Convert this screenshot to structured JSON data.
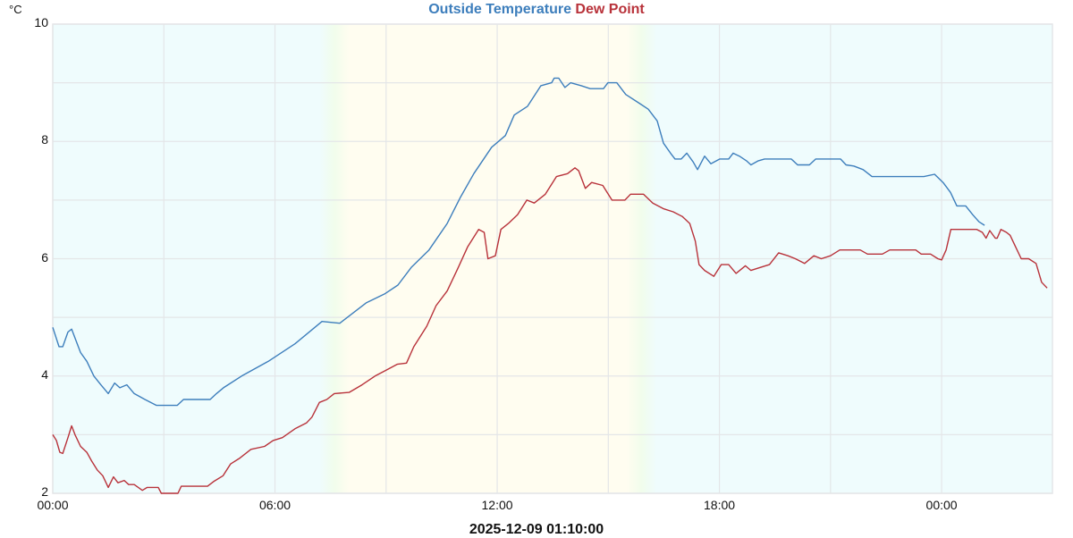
{
  "header": {
    "series_1_label": "Outside Temperature",
    "series_2_label": "Dew Point",
    "unit": "°C"
  },
  "footer": {
    "timestamp": "2025-12-09 01:10:00"
  },
  "colors": {
    "temperature": "#3d7ebc",
    "dew_point": "#b8323a",
    "grid": "#e4e6e8",
    "night_bg": "#effcfd",
    "day_bg": "#fffdf0",
    "twilight_bg": "#f1fdec"
  },
  "chart_data": {
    "type": "line",
    "title": "Outside Temperature Dew Point",
    "xlabel": "2025-12-09 01:10:00",
    "ylabel": "°C",
    "ylim": [
      2,
      10
    ],
    "xlim_hours": [
      0,
      27
    ],
    "y_ticks": [
      "2",
      "4",
      "6",
      "8",
      "10"
    ],
    "y_tick_values": [
      2,
      4,
      6,
      8,
      10
    ],
    "x_ticks": [
      "00:00",
      "06:00",
      "12:00",
      "18:00",
      "00:00"
    ],
    "x_tick_hours": [
      0,
      6,
      12,
      18,
      24
    ],
    "grid": {
      "x_every_hours": 3,
      "y_every": 1
    },
    "legend_position": "top-center",
    "daylight_band_hours": {
      "day_start": 8.0,
      "day_end": 15.5,
      "fade": 0.8
    },
    "series": [
      {
        "name": "Outside Temperature",
        "color": "#3d7ebc",
        "points": [
          [
            0.0,
            4.83
          ],
          [
            0.17,
            4.5
          ],
          [
            0.27,
            4.5
          ],
          [
            0.41,
            4.75
          ],
          [
            0.51,
            4.8
          ],
          [
            0.75,
            4.4
          ],
          [
            0.92,
            4.25
          ],
          [
            1.11,
            4.0
          ],
          [
            1.3,
            3.85
          ],
          [
            1.5,
            3.7
          ],
          [
            1.67,
            3.88
          ],
          [
            1.81,
            3.8
          ],
          [
            2.0,
            3.85
          ],
          [
            2.2,
            3.7
          ],
          [
            2.49,
            3.6
          ],
          [
            2.8,
            3.5
          ],
          [
            3.36,
            3.5
          ],
          [
            3.53,
            3.6
          ],
          [
            4.25,
            3.6
          ],
          [
            4.42,
            3.7
          ],
          [
            4.61,
            3.8
          ],
          [
            5.1,
            4.0
          ],
          [
            5.82,
            4.25
          ],
          [
            6.54,
            4.55
          ],
          [
            7.27,
            4.93
          ],
          [
            7.75,
            4.9
          ],
          [
            8.47,
            5.25
          ],
          [
            8.96,
            5.4
          ],
          [
            9.32,
            5.55
          ],
          [
            9.68,
            5.85
          ],
          [
            10.16,
            6.15
          ],
          [
            10.65,
            6.6
          ],
          [
            11.01,
            7.05
          ],
          [
            11.37,
            7.45
          ],
          [
            11.85,
            7.9
          ],
          [
            12.22,
            8.1
          ],
          [
            12.46,
            8.45
          ],
          [
            12.82,
            8.6
          ],
          [
            13.18,
            8.95
          ],
          [
            13.47,
            9.0
          ],
          [
            13.54,
            9.08
          ],
          [
            13.66,
            9.08
          ],
          [
            13.83,
            8.92
          ],
          [
            13.98,
            9.0
          ],
          [
            14.27,
            8.95
          ],
          [
            14.51,
            8.9
          ],
          [
            14.87,
            8.9
          ],
          [
            14.99,
            9.0
          ],
          [
            15.23,
            9.0
          ],
          [
            15.47,
            8.8
          ],
          [
            15.84,
            8.65
          ],
          [
            16.08,
            8.55
          ],
          [
            16.32,
            8.35
          ],
          [
            16.49,
            7.97
          ],
          [
            16.68,
            7.8
          ],
          [
            16.8,
            7.7
          ],
          [
            16.97,
            7.7
          ],
          [
            17.12,
            7.8
          ],
          [
            17.29,
            7.65
          ],
          [
            17.41,
            7.52
          ],
          [
            17.6,
            7.75
          ],
          [
            17.77,
            7.62
          ],
          [
            18.01,
            7.7
          ],
          [
            18.25,
            7.7
          ],
          [
            18.37,
            7.8
          ],
          [
            18.54,
            7.75
          ],
          [
            18.73,
            7.67
          ],
          [
            18.85,
            7.6
          ],
          [
            19.05,
            7.67
          ],
          [
            19.22,
            7.7
          ],
          [
            19.94,
            7.7
          ],
          [
            20.11,
            7.6
          ],
          [
            20.43,
            7.6
          ],
          [
            20.6,
            7.7
          ],
          [
            21.27,
            7.7
          ],
          [
            21.42,
            7.6
          ],
          [
            21.63,
            7.58
          ],
          [
            21.88,
            7.52
          ],
          [
            22.12,
            7.4
          ],
          [
            23.52,
            7.4
          ],
          [
            23.81,
            7.44
          ],
          [
            24.04,
            7.3
          ],
          [
            24.24,
            7.13
          ],
          [
            24.41,
            6.9
          ],
          [
            24.65,
            6.9
          ],
          [
            24.84,
            6.75
          ],
          [
            25.01,
            6.63
          ],
          [
            25.16,
            6.57
          ]
        ]
      },
      {
        "name": "Dew Point",
        "color": "#b8323a",
        "points": [
          [
            0.0,
            3.0
          ],
          [
            0.1,
            2.9
          ],
          [
            0.19,
            2.7
          ],
          [
            0.27,
            2.68
          ],
          [
            0.41,
            2.95
          ],
          [
            0.51,
            3.15
          ],
          [
            0.6,
            3.0
          ],
          [
            0.75,
            2.8
          ],
          [
            0.92,
            2.7
          ],
          [
            1.05,
            2.55
          ],
          [
            1.2,
            2.4
          ],
          [
            1.35,
            2.3
          ],
          [
            1.5,
            2.1
          ],
          [
            1.64,
            2.28
          ],
          [
            1.76,
            2.18
          ],
          [
            1.93,
            2.22
          ],
          [
            2.05,
            2.15
          ],
          [
            2.2,
            2.15
          ],
          [
            2.42,
            2.05
          ],
          [
            2.55,
            2.1
          ],
          [
            2.85,
            2.1
          ],
          [
            2.93,
            2.0
          ],
          [
            3.38,
            2.0
          ],
          [
            3.47,
            2.12
          ],
          [
            4.18,
            2.12
          ],
          [
            4.34,
            2.2
          ],
          [
            4.6,
            2.3
          ],
          [
            4.8,
            2.5
          ],
          [
            5.05,
            2.6
          ],
          [
            5.35,
            2.75
          ],
          [
            5.72,
            2.8
          ],
          [
            5.95,
            2.9
          ],
          [
            6.2,
            2.95
          ],
          [
            6.54,
            3.1
          ],
          [
            6.85,
            3.2
          ],
          [
            7.0,
            3.3
          ],
          [
            7.2,
            3.55
          ],
          [
            7.4,
            3.6
          ],
          [
            7.6,
            3.7
          ],
          [
            8.0,
            3.72
          ],
          [
            8.35,
            3.85
          ],
          [
            8.7,
            4.0
          ],
          [
            9.0,
            4.1
          ],
          [
            9.3,
            4.2
          ],
          [
            9.55,
            4.22
          ],
          [
            9.75,
            4.5
          ],
          [
            10.1,
            4.85
          ],
          [
            10.35,
            5.2
          ],
          [
            10.65,
            5.45
          ],
          [
            10.95,
            5.85
          ],
          [
            11.2,
            6.2
          ],
          [
            11.5,
            6.5
          ],
          [
            11.65,
            6.45
          ],
          [
            11.75,
            6.0
          ],
          [
            11.95,
            6.05
          ],
          [
            12.1,
            6.5
          ],
          [
            12.3,
            6.6
          ],
          [
            12.55,
            6.75
          ],
          [
            12.8,
            7.0
          ],
          [
            13.0,
            6.95
          ],
          [
            13.3,
            7.1
          ],
          [
            13.6,
            7.4
          ],
          [
            13.9,
            7.45
          ],
          [
            14.1,
            7.55
          ],
          [
            14.2,
            7.5
          ],
          [
            14.38,
            7.2
          ],
          [
            14.55,
            7.3
          ],
          [
            14.85,
            7.25
          ],
          [
            15.1,
            7.0
          ],
          [
            15.45,
            7.0
          ],
          [
            15.6,
            7.1
          ],
          [
            15.95,
            7.1
          ],
          [
            16.2,
            6.95
          ],
          [
            16.5,
            6.85
          ],
          [
            16.75,
            6.8
          ],
          [
            17.0,
            6.72
          ],
          [
            17.2,
            6.6
          ],
          [
            17.35,
            6.3
          ],
          [
            17.45,
            5.9
          ],
          [
            17.6,
            5.8
          ],
          [
            17.85,
            5.7
          ],
          [
            18.05,
            5.9
          ],
          [
            18.25,
            5.9
          ],
          [
            18.45,
            5.75
          ],
          [
            18.7,
            5.88
          ],
          [
            18.85,
            5.8
          ],
          [
            19.1,
            5.85
          ],
          [
            19.35,
            5.9
          ],
          [
            19.6,
            6.1
          ],
          [
            19.85,
            6.05
          ],
          [
            20.05,
            6.0
          ],
          [
            20.3,
            5.92
          ],
          [
            20.55,
            6.05
          ],
          [
            20.75,
            6.0
          ],
          [
            21.0,
            6.05
          ],
          [
            21.25,
            6.15
          ],
          [
            21.8,
            6.15
          ],
          [
            22.0,
            6.08
          ],
          [
            22.4,
            6.08
          ],
          [
            22.6,
            6.15
          ],
          [
            23.3,
            6.15
          ],
          [
            23.45,
            6.08
          ],
          [
            23.7,
            6.08
          ],
          [
            23.9,
            6.0
          ],
          [
            24.0,
            5.98
          ],
          [
            24.12,
            6.15
          ],
          [
            24.25,
            6.5
          ],
          [
            24.6,
            6.5
          ],
          [
            24.95,
            6.5
          ],
          [
            25.1,
            6.45
          ],
          [
            25.2,
            6.35
          ],
          [
            25.3,
            6.48
          ],
          [
            25.45,
            6.35
          ],
          [
            25.5,
            6.35
          ],
          [
            25.6,
            6.5
          ],
          [
            25.75,
            6.45
          ],
          [
            25.85,
            6.4
          ],
          [
            26.0,
            6.2
          ],
          [
            26.15,
            6.0
          ],
          [
            26.35,
            6.0
          ],
          [
            26.55,
            5.92
          ],
          [
            26.7,
            5.6
          ],
          [
            26.85,
            5.5
          ]
        ]
      }
    ]
  }
}
